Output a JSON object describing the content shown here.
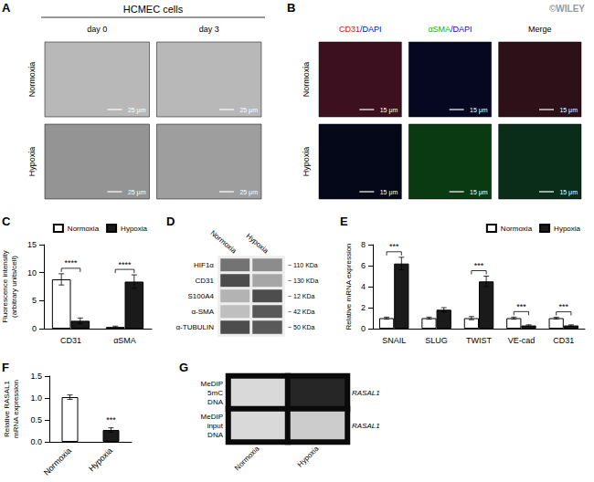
{
  "chart_data": [
    {
      "type": "image_grid",
      "panel_label": "A",
      "title": "HCMEC cells",
      "columns": [
        [
          {
            "text": "day 0",
            "color": "#000000"
          }
        ],
        [
          {
            "text": "day 3",
            "color": "#000000"
          }
        ]
      ],
      "rows": [
        "Normoxia",
        "Hypoxia"
      ],
      "scale_bar": "25 μm",
      "colors": [
        "#b8b8b8",
        "#b8b8b8",
        "#949494",
        "#9e9e9e"
      ]
    },
    {
      "type": "image_grid",
      "panel_label": "B",
      "annotation": "©WILEY",
      "annotation_color": "#999999",
      "columns": [
        [
          {
            "text": "CD31",
            "color": "red"
          },
          {
            "text": "/DAPI",
            "color": "blue"
          }
        ],
        [
          {
            "text": "αSMA",
            "color": "#00bb00"
          },
          {
            "text": "/DAPI",
            "color": "blue"
          }
        ],
        [
          {
            "text": "Merge",
            "color": "black"
          }
        ]
      ],
      "rows": [
        "Normoxia",
        "Hypoxia"
      ],
      "scale_bar": "15 μm",
      "colors": [
        "#3d1020",
        "#050820",
        "#2d1018",
        "#050818",
        "#0a3a12",
        "#0a2d1a"
      ]
    },
    {
      "type": "bar",
      "panel_label": "C",
      "ylabel": "Fluorescence intensity\n(arbitrary units/cell)",
      "categories": [
        "CD31",
        "αSMA"
      ],
      "series": [
        {
          "name": "Normoxia",
          "color": "#ffffff",
          "values": [
            8.8,
            0.3
          ],
          "errors": [
            1.0,
            0.15
          ]
        },
        {
          "name": "Hypoxia",
          "color": "#1a1a1a",
          "values": [
            1.4,
            8.4
          ],
          "errors": [
            0.5,
            1.2
          ]
        }
      ],
      "edge_color": "#000000",
      "significance": [
        "****",
        "****"
      ],
      "ylim": [
        0,
        15
      ],
      "yticks": [
        0,
        5,
        10,
        15
      ],
      "grid": false,
      "legend": "upper right"
    },
    {
      "type": "blot",
      "panel_label": "D",
      "columns": [
        "Normoxia",
        "Hypoxia"
      ],
      "rows": [
        "HIF1α",
        "CD31",
        "S100A4",
        "α-SMA",
        "α-TUBULIN"
      ],
      "row_labels_right": [
        "~ 110 KDa",
        "~ 130 KDa",
        "~ 12 KDa",
        "~ 42 KDa",
        "~ 50 KDa"
      ],
      "values": [
        [
          0.45,
          0.55
        ],
        [
          0.3,
          0.65
        ],
        [
          0.7,
          0.3
        ],
        [
          0.75,
          0.35
        ],
        [
          0.3,
          0.35
        ]
      ],
      "background": "#eeeeee"
    },
    {
      "type": "bar",
      "panel_label": "E",
      "ylabel": "Relative mRNA expression",
      "categories": [
        "SNAIL",
        "SLUG",
        "TWIST",
        "VE-cad",
        "CD31"
      ],
      "series": [
        {
          "name": "Normoxia",
          "color": "#ffffff",
          "values": [
            1.0,
            1.0,
            1.0,
            1.0,
            1.0
          ],
          "errors": [
            0.1,
            0.1,
            0.15,
            0.1,
            0.08
          ]
        },
        {
          "name": "Hypoxia",
          "color": "#1a1a1a",
          "values": [
            6.2,
            1.8,
            4.5,
            0.3,
            0.3
          ],
          "errors": [
            0.6,
            0.2,
            0.5,
            0.06,
            0.06
          ]
        }
      ],
      "edge_color": "#000000",
      "significance": [
        "***",
        null,
        "***",
        "***",
        "***"
      ],
      "ylim": [
        0,
        8
      ],
      "yticks": [
        0,
        2,
        4,
        6,
        8
      ],
      "grid": false,
      "legend": "upper right"
    },
    {
      "type": "bar",
      "panel_label": "F",
      "ylabel": "Relative RASAL1\nmRNA expression",
      "categories": [
        "Normoxia",
        "Hypoxia"
      ],
      "values": [
        1.02,
        0.27
      ],
      "errors": [
        0.05,
        0.05
      ],
      "colors": [
        "#ffffff",
        "#1a1a1a"
      ],
      "edge_color": "#000000",
      "significance": [
        null,
        "***"
      ],
      "ylim": [
        0,
        1.5
      ],
      "yticks": [
        {
          "value": 0,
          "label": "0.0"
        },
        0.5,
        {
          "value": 1,
          "label": "1.0"
        },
        1.5
      ],
      "grid": false
    },
    {
      "type": "blot",
      "panel_label": "G",
      "columns": [
        "Normoxia",
        "Hypoxia"
      ],
      "rows": [
        "MeDIP\n5mC\nDNA",
        "MeDIP\ninput\nDNA"
      ],
      "gene_label": "RASAL1",
      "values": [
        [
          0.85,
          0.15
        ],
        [
          0.85,
          0.8
        ]
      ],
      "background": "#0a0a0a"
    }
  ]
}
